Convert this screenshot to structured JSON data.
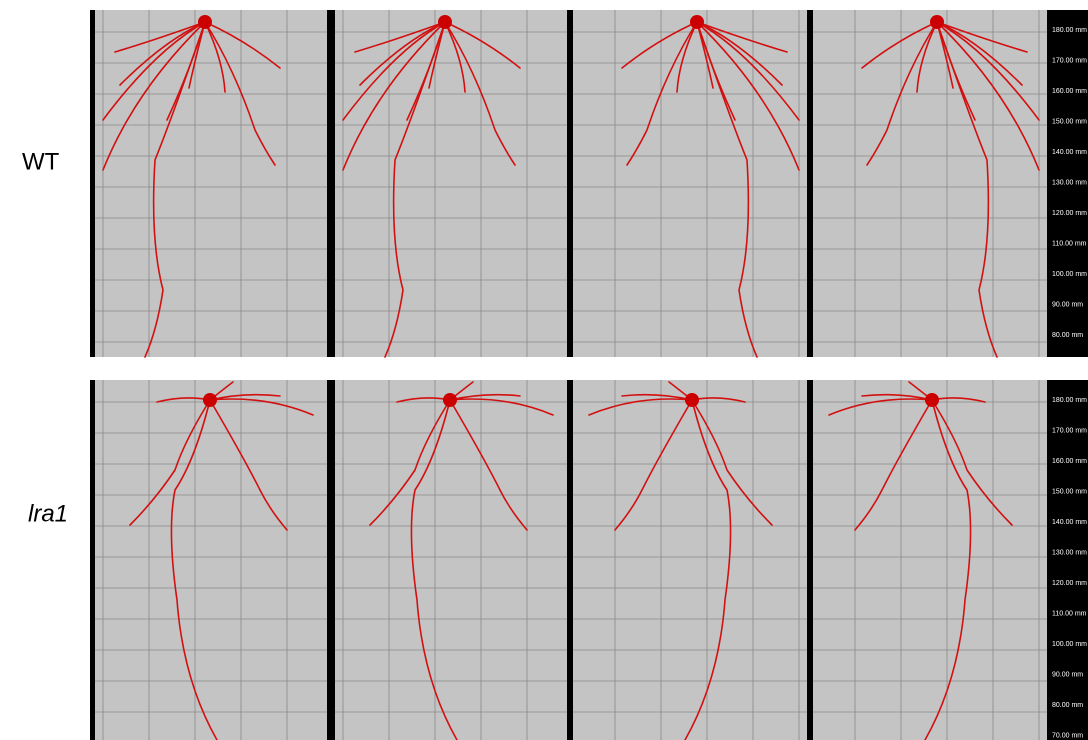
{
  "rows": [
    {
      "label": "WT",
      "scale": [
        "180.00 mm",
        "170.00 mm",
        "160.00 mm",
        "150.00 mm",
        "140.00 mm",
        "130.00 mm",
        "120.00 mm",
        "110.00 mm",
        "100.00 mm",
        "90.00 mm",
        "80.00 mm"
      ]
    },
    {
      "label": "lra1",
      "scale": [
        "180.00 mm",
        "170.00 mm",
        "160.00 mm",
        "150.00 mm",
        "140.00 mm",
        "130.00 mm",
        "120.00 mm",
        "110.00 mm",
        "100.00 mm",
        "90.00 mm",
        "80.00 mm",
        "70.00 mm"
      ]
    }
  ]
}
